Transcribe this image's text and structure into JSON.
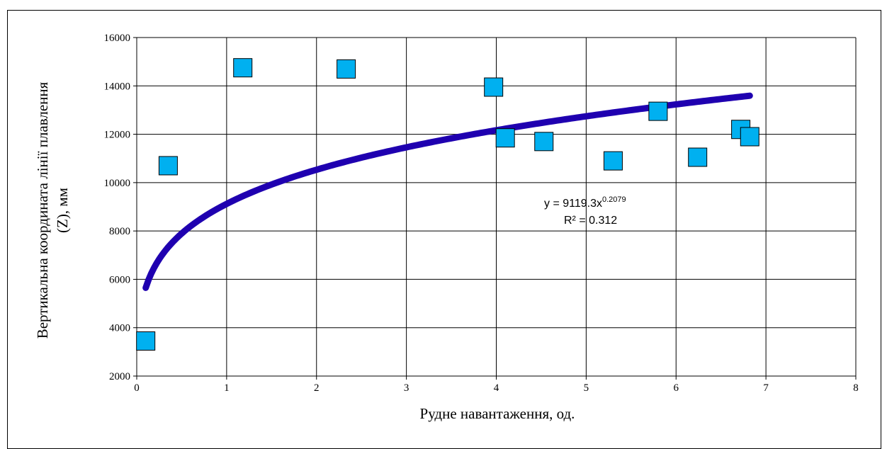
{
  "chart_data": {
    "type": "scatter",
    "xlabel": "Рудне навантаження, од.",
    "ylabel_line1": "Вертикальна координата лінії плавлення",
    "ylabel_line2": "(Z), мм",
    "xlim": [
      0,
      8
    ],
    "ylim": [
      2000,
      16000
    ],
    "x_ticks": [
      0,
      1,
      2,
      3,
      4,
      5,
      6,
      7,
      8
    ],
    "y_ticks": [
      2000,
      4000,
      6000,
      8000,
      10000,
      12000,
      14000,
      16000
    ],
    "grid": true,
    "points": [
      {
        "x": 0.1,
        "y": 3450
      },
      {
        "x": 0.35,
        "y": 10700
      },
      {
        "x": 1.18,
        "y": 14750
      },
      {
        "x": 2.33,
        "y": 14700
      },
      {
        "x": 3.97,
        "y": 13950
      },
      {
        "x": 4.1,
        "y": 11850
      },
      {
        "x": 4.53,
        "y": 11700
      },
      {
        "x": 5.3,
        "y": 10900
      },
      {
        "x": 5.8,
        "y": 12950
      },
      {
        "x": 6.24,
        "y": 11050
      },
      {
        "x": 6.72,
        "y": 12200
      },
      {
        "x": 6.82,
        "y": 11900
      }
    ],
    "trendline": {
      "type": "power",
      "a": 9119.3,
      "b": 0.2079,
      "x_start": 0.1,
      "x_end": 6.82,
      "equation_main": "y = 9119.3x",
      "equation_exp": "0.2079",
      "r2_text": "R² = 0.312"
    },
    "colors": {
      "marker_fill": "#00b0f0",
      "marker_stroke": "#000000",
      "trendline": "#1f00b0",
      "grid": "#000000"
    }
  }
}
